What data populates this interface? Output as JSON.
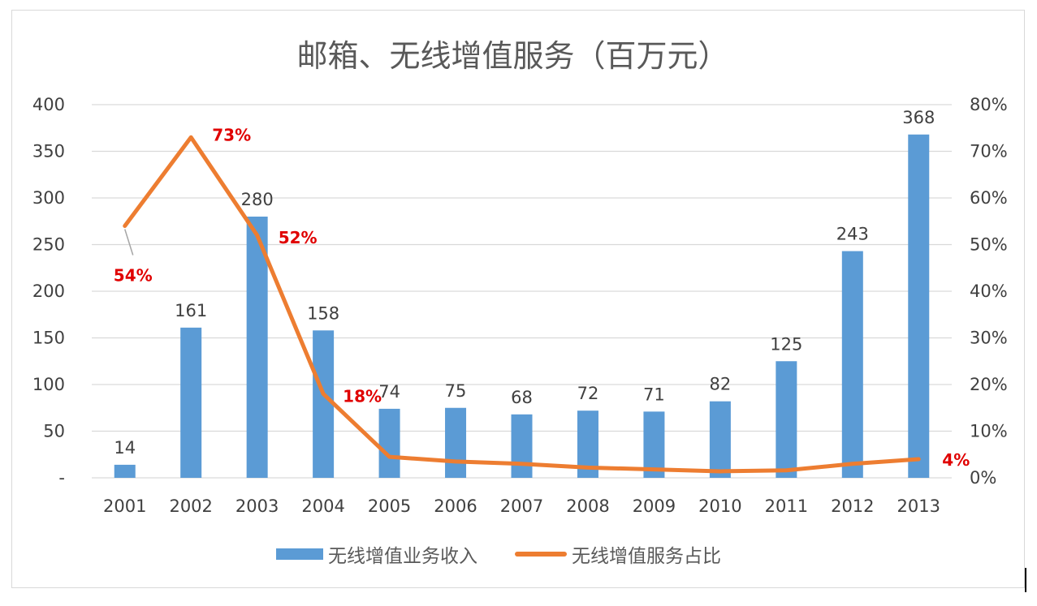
{
  "title": "邮箱、无线增值服务（百万元）",
  "legend": {
    "bar_label": "无线增值业务收入",
    "line_label": "无线增值服务占比"
  },
  "colors": {
    "bar": "#5b9bd5",
    "line": "#ed7d31",
    "pct_label": "#e00000",
    "grid": "#d9d9d9",
    "text": "#404040"
  },
  "chart_data": {
    "type": "bar",
    "title": "邮箱、无线增值服务（百万元）",
    "categories": [
      "2001",
      "2002",
      "2003",
      "2004",
      "2005",
      "2006",
      "2007",
      "2008",
      "2009",
      "2010",
      "2011",
      "2012",
      "2013"
    ],
    "series": [
      {
        "name": "无线增值业务收入",
        "type": "bar",
        "axis": "left",
        "values": [
          14,
          161,
          280,
          158,
          74,
          75,
          68,
          72,
          71,
          82,
          125,
          243,
          368
        ],
        "labels": [
          "14",
          "161",
          "280",
          "158",
          "74",
          "75",
          "68",
          "72",
          "71",
          "82",
          "125",
          "243",
          "368"
        ]
      },
      {
        "name": "无线增值服务占比",
        "type": "line",
        "axis": "right",
        "values": [
          54,
          73,
          52,
          18,
          4.5,
          3.5,
          3,
          2.2,
          1.8,
          1.4,
          1.6,
          3,
          4
        ],
        "point_labels": [
          {
            "index": 0,
            "text": "54%"
          },
          {
            "index": 1,
            "text": "73%"
          },
          {
            "index": 2,
            "text": "52%"
          },
          {
            "index": 3,
            "text": "18%"
          },
          {
            "index": 12,
            "text": "4%"
          }
        ]
      }
    ],
    "y_left": {
      "ylim": [
        0,
        400
      ],
      "ticks": [
        0,
        50,
        100,
        150,
        200,
        250,
        300,
        350,
        400
      ],
      "tick_labels": [
        "-",
        "50",
        "100",
        "150",
        "200",
        "250",
        "300",
        "350",
        "400"
      ]
    },
    "y_right": {
      "ylim": [
        0,
        80
      ],
      "ticks": [
        0,
        10,
        20,
        30,
        40,
        50,
        60,
        70,
        80
      ],
      "tick_labels": [
        "0%",
        "10%",
        "20%",
        "30%",
        "40%",
        "50%",
        "60%",
        "70%",
        "80%"
      ]
    },
    "grid": true,
    "legend_position": "bottom"
  }
}
